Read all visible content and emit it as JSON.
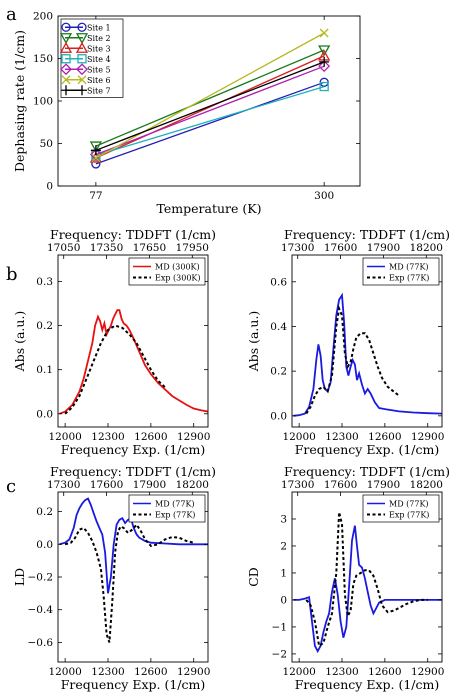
{
  "panels": {
    "a": "a",
    "b": "b",
    "c": "c"
  },
  "chart_data": [
    {
      "id": "a",
      "type": "line",
      "xlabel": "Temperature (K)",
      "ylabel": "Dephasing rate (1/cm)",
      "x": [
        77,
        300
      ],
      "xticks": [
        77,
        300
      ],
      "xlim": [
        40,
        335
      ],
      "ylim": [
        0,
        200
      ],
      "yticks": [
        0,
        50,
        100,
        150,
        200
      ],
      "grid": false,
      "legend_position": "top-left",
      "series": [
        {
          "name": "Site 1",
          "marker": "circle",
          "color": "#1f1fb4",
          "values": [
            26,
            122
          ]
        },
        {
          "name": "Site 2",
          "marker": "triangle-down",
          "color": "#1a7a1a",
          "values": [
            47,
            160
          ]
        },
        {
          "name": "Site 3",
          "marker": "triangle-up",
          "color": "#d62020",
          "values": [
            33,
            153
          ]
        },
        {
          "name": "Site 4",
          "marker": "square",
          "color": "#20b0b8",
          "values": [
            36,
            117
          ]
        },
        {
          "name": "Site 5",
          "marker": "diamond",
          "color": "#b020b0",
          "values": [
            37,
            141
          ]
        },
        {
          "name": "Site 6",
          "marker": "x",
          "color": "#b8b820",
          "values": [
            33,
            180
          ]
        },
        {
          "name": "Site 7",
          "marker": "plus",
          "color": "#000000",
          "values": [
            42,
            146
          ]
        }
      ]
    },
    {
      "id": "b-left",
      "type": "line",
      "xlabel": "Frequency Exp. (1/cm)",
      "ylabel": "Abs (a.u.)",
      "top_xlabel": "Frequency: TDDFT (1/cm)",
      "xlim": [
        11950,
        13000
      ],
      "xticks": [
        12000,
        12300,
        12600,
        12900
      ],
      "top_xticks": [
        "17050",
        "17350",
        "17650",
        "17950"
      ],
      "top_tick_positions": [
        11990,
        12290,
        12590,
        12890
      ],
      "ylim": [
        -0.03,
        0.36
      ],
      "yticks": [
        "0.0",
        "0.1",
        "0.2",
        "0.3"
      ],
      "ytick_values": [
        0,
        0.1,
        0.2,
        0.3
      ],
      "legend_position": "top-right",
      "series": [
        {
          "name": "MD (300K)",
          "style": "solid",
          "color": "#e81010",
          "x": [
            11960,
            12000,
            12050,
            12100,
            12130,
            12160,
            12190,
            12210,
            12230,
            12245,
            12260,
            12275,
            12290,
            12305,
            12320,
            12335,
            12350,
            12365,
            12380,
            12395,
            12410,
            12430,
            12450,
            12480,
            12520,
            12560,
            12600,
            12650,
            12700,
            12750,
            12800,
            12850,
            12900,
            12950,
            13000
          ],
          "y": [
            0.0,
            0.005,
            0.02,
            0.05,
            0.08,
            0.12,
            0.16,
            0.2,
            0.22,
            0.21,
            0.19,
            0.205,
            0.18,
            0.19,
            0.2,
            0.215,
            0.225,
            0.235,
            0.235,
            0.215,
            0.205,
            0.2,
            0.19,
            0.17,
            0.14,
            0.11,
            0.09,
            0.07,
            0.055,
            0.04,
            0.03,
            0.02,
            0.012,
            0.008,
            0.005
          ]
        },
        {
          "name": "Exp (300K)",
          "style": "dotted",
          "color": "#000000",
          "x": [
            12000,
            12050,
            12100,
            12150,
            12200,
            12250,
            12300,
            12350,
            12400,
            12450,
            12500,
            12550,
            12600,
            12650,
            12700
          ],
          "y": [
            0.0,
            0.015,
            0.04,
            0.08,
            0.12,
            0.16,
            0.19,
            0.2,
            0.195,
            0.18,
            0.16,
            0.13,
            0.1,
            0.075,
            0.06
          ]
        }
      ]
    },
    {
      "id": "b-right",
      "type": "line",
      "xlabel": "Frequency Exp. (1/cm)",
      "ylabel": "Abs (a.u.)",
      "top_xlabel": "Frequency: TDDFT (1/cm)",
      "xlim": [
        11950,
        13000
      ],
      "xticks": [
        12000,
        12300,
        12600,
        12900
      ],
      "top_xticks": [
        "17300",
        "17600",
        "17900",
        "18200"
      ],
      "top_tick_positions": [
        11990,
        12290,
        12590,
        12890
      ],
      "ylim": [
        -0.05,
        0.72
      ],
      "yticks": [
        "0.0",
        "0.2",
        "0.4",
        "0.6"
      ],
      "ytick_values": [
        0,
        0.2,
        0.4,
        0.6
      ],
      "legend_position": "top-right",
      "series": [
        {
          "name": "MD (77K)",
          "style": "solid",
          "color": "#1a1ae0",
          "x": [
            11960,
            12000,
            12040,
            12070,
            12100,
            12120,
            12135,
            12150,
            12165,
            12180,
            12200,
            12220,
            12240,
            12260,
            12280,
            12300,
            12315,
            12330,
            12345,
            12360,
            12375,
            12390,
            12405,
            12420,
            12440,
            12460,
            12480,
            12500,
            12530,
            12560,
            12600,
            12700,
            12800,
            12900,
            13000
          ],
          "y": [
            0.0,
            0.003,
            0.01,
            0.04,
            0.12,
            0.25,
            0.32,
            0.27,
            0.16,
            0.12,
            0.11,
            0.15,
            0.3,
            0.45,
            0.52,
            0.54,
            0.42,
            0.22,
            0.18,
            0.22,
            0.25,
            0.23,
            0.16,
            0.19,
            0.14,
            0.1,
            0.12,
            0.1,
            0.06,
            0.035,
            0.03,
            0.02,
            0.015,
            0.012,
            0.01
          ]
        },
        {
          "name": "Exp (77K)",
          "style": "dotted",
          "color": "#000000",
          "x": [
            12050,
            12080,
            12110,
            12140,
            12170,
            12200,
            12230,
            12260,
            12280,
            12300,
            12320,
            12340,
            12360,
            12380,
            12400,
            12430,
            12460,
            12490,
            12520,
            12550,
            12580,
            12620,
            12660,
            12700
          ],
          "y": [
            0.01,
            0.04,
            0.09,
            0.12,
            0.13,
            0.11,
            0.18,
            0.4,
            0.48,
            0.45,
            0.28,
            0.22,
            0.24,
            0.3,
            0.35,
            0.37,
            0.37,
            0.34,
            0.28,
            0.22,
            0.17,
            0.13,
            0.11,
            0.09
          ]
        }
      ]
    },
    {
      "id": "c-left",
      "type": "line",
      "xlabel": "Frequency Exp. (1/cm)",
      "ylabel": "LD",
      "top_xlabel": "Frequency: TDDFT (1/cm)",
      "xlim": [
        11950,
        13000
      ],
      "xticks": [
        12000,
        12300,
        12600,
        12900
      ],
      "top_xticks": [
        "17300",
        "17600",
        "17900",
        "18200"
      ],
      "top_tick_positions": [
        11990,
        12290,
        12590,
        12890
      ],
      "ylim": [
        -0.72,
        0.32
      ],
      "yticks": [
        "−0.6",
        "−0.4",
        "−0.2",
        "0.0",
        "0.2"
      ],
      "ytick_values": [
        -0.6,
        -0.4,
        -0.2,
        0,
        0.2
      ],
      "legend_position": "top-right",
      "series": [
        {
          "name": "MD (77K)",
          "style": "solid",
          "color": "#1a1ae0",
          "x": [
            11960,
            12000,
            12030,
            12060,
            12080,
            12100,
            12120,
            12140,
            12160,
            12180,
            12200,
            12220,
            12240,
            12260,
            12280,
            12300,
            12320,
            12340,
            12360,
            12380,
            12400,
            12420,
            12440,
            12460,
            12480,
            12500,
            12520,
            12560,
            12600,
            12700,
            12800,
            12900,
            13000
          ],
          "y": [
            0.0,
            0.01,
            0.03,
            0.1,
            0.18,
            0.22,
            0.25,
            0.27,
            0.28,
            0.24,
            0.19,
            0.14,
            0.1,
            0.06,
            -0.05,
            -0.3,
            -0.2,
            0.0,
            0.12,
            0.15,
            0.16,
            0.13,
            0.15,
            0.16,
            0.1,
            0.06,
            0.04,
            0.02,
            0.01,
            0.005,
            0.0,
            0.0,
            0.0
          ]
        },
        {
          "name": "Exp (77K)",
          "style": "dotted",
          "color": "#000000",
          "x": [
            12000,
            12040,
            12070,
            12100,
            12130,
            12160,
            12190,
            12220,
            12250,
            12270,
            12290,
            12310,
            12330,
            12350,
            12370,
            12390,
            12410,
            12440,
            12470,
            12500,
            12530,
            12560,
            12600,
            12650,
            12700,
            12750,
            12800,
            12850,
            12900
          ],
          "y": [
            0.0,
            0.01,
            0.04,
            0.09,
            0.1,
            0.07,
            0.02,
            -0.05,
            -0.15,
            -0.32,
            -0.55,
            -0.6,
            -0.35,
            -0.05,
            0.08,
            0.11,
            0.1,
            0.07,
            0.09,
            0.12,
            0.08,
            0.03,
            -0.01,
            0.0,
            0.03,
            0.045,
            0.04,
            0.02,
            0.01
          ]
        }
      ]
    },
    {
      "id": "c-right",
      "type": "line",
      "xlabel": "Frequency Exp. (1/cm)",
      "ylabel": "CD",
      "top_xlabel": "Frequency: TDDFT (1/cm)",
      "xlim": [
        11950,
        13000
      ],
      "xticks": [
        12000,
        12300,
        12600,
        12900
      ],
      "top_xticks": [
        "17300",
        "17600",
        "17900",
        "18200"
      ],
      "top_tick_positions": [
        11990,
        12290,
        12590,
        12890
      ],
      "ylim": [
        -2.3,
        4.0
      ],
      "yticks": [
        "−2",
        "−1",
        "0",
        "1",
        "2",
        "3"
      ],
      "ytick_values": [
        -2,
        -1,
        0,
        1,
        2,
        3
      ],
      "legend_position": "top-right",
      "series": [
        {
          "name": "MD (77K)",
          "style": "solid",
          "color": "#1a1ae0",
          "x": [
            11960,
            12000,
            12040,
            12070,
            12090,
            12110,
            12130,
            12150,
            12170,
            12190,
            12210,
            12230,
            12250,
            12270,
            12290,
            12310,
            12330,
            12350,
            12370,
            12390,
            12405,
            12420,
            12440,
            12460,
            12480,
            12500,
            12520,
            12540,
            12560,
            12600,
            12700,
            12800,
            12900,
            13000
          ],
          "y": [
            0.0,
            0.0,
            0.05,
            0.1,
            -0.8,
            -1.7,
            -1.9,
            -1.7,
            -1.2,
            -0.8,
            -0.5,
            0.3,
            0.8,
            0.2,
            -0.8,
            -1.4,
            -1.0,
            0.5,
            2.2,
            2.75,
            2.0,
            1.3,
            1.2,
            0.8,
            0.3,
            -0.2,
            -0.5,
            -0.3,
            -0.1,
            0.0,
            0.0,
            0.0,
            0.0,
            0.0
          ]
        },
        {
          "name": "Exp (77K)",
          "style": "dotted",
          "color": "#000000",
          "x": [
            12050,
            12080,
            12110,
            12140,
            12170,
            12200,
            12230,
            12260,
            12280,
            12300,
            12320,
            12340,
            12360,
            12380,
            12400,
            12430,
            12460,
            12490,
            12520,
            12550,
            12580,
            12620,
            12660,
            12700,
            12750,
            12800,
            12850,
            12900
          ],
          "y": [
            0.0,
            -0.2,
            -0.8,
            -1.7,
            -1.6,
            -1.0,
            -0.5,
            1.0,
            3.25,
            2.8,
            0.2,
            -0.6,
            -0.4,
            0.6,
            0.9,
            1.0,
            1.1,
            1.1,
            0.9,
            0.4,
            -0.2,
            -0.45,
            -0.4,
            -0.3,
            -0.15,
            -0.05,
            0.0,
            0.0
          ]
        }
      ]
    }
  ]
}
